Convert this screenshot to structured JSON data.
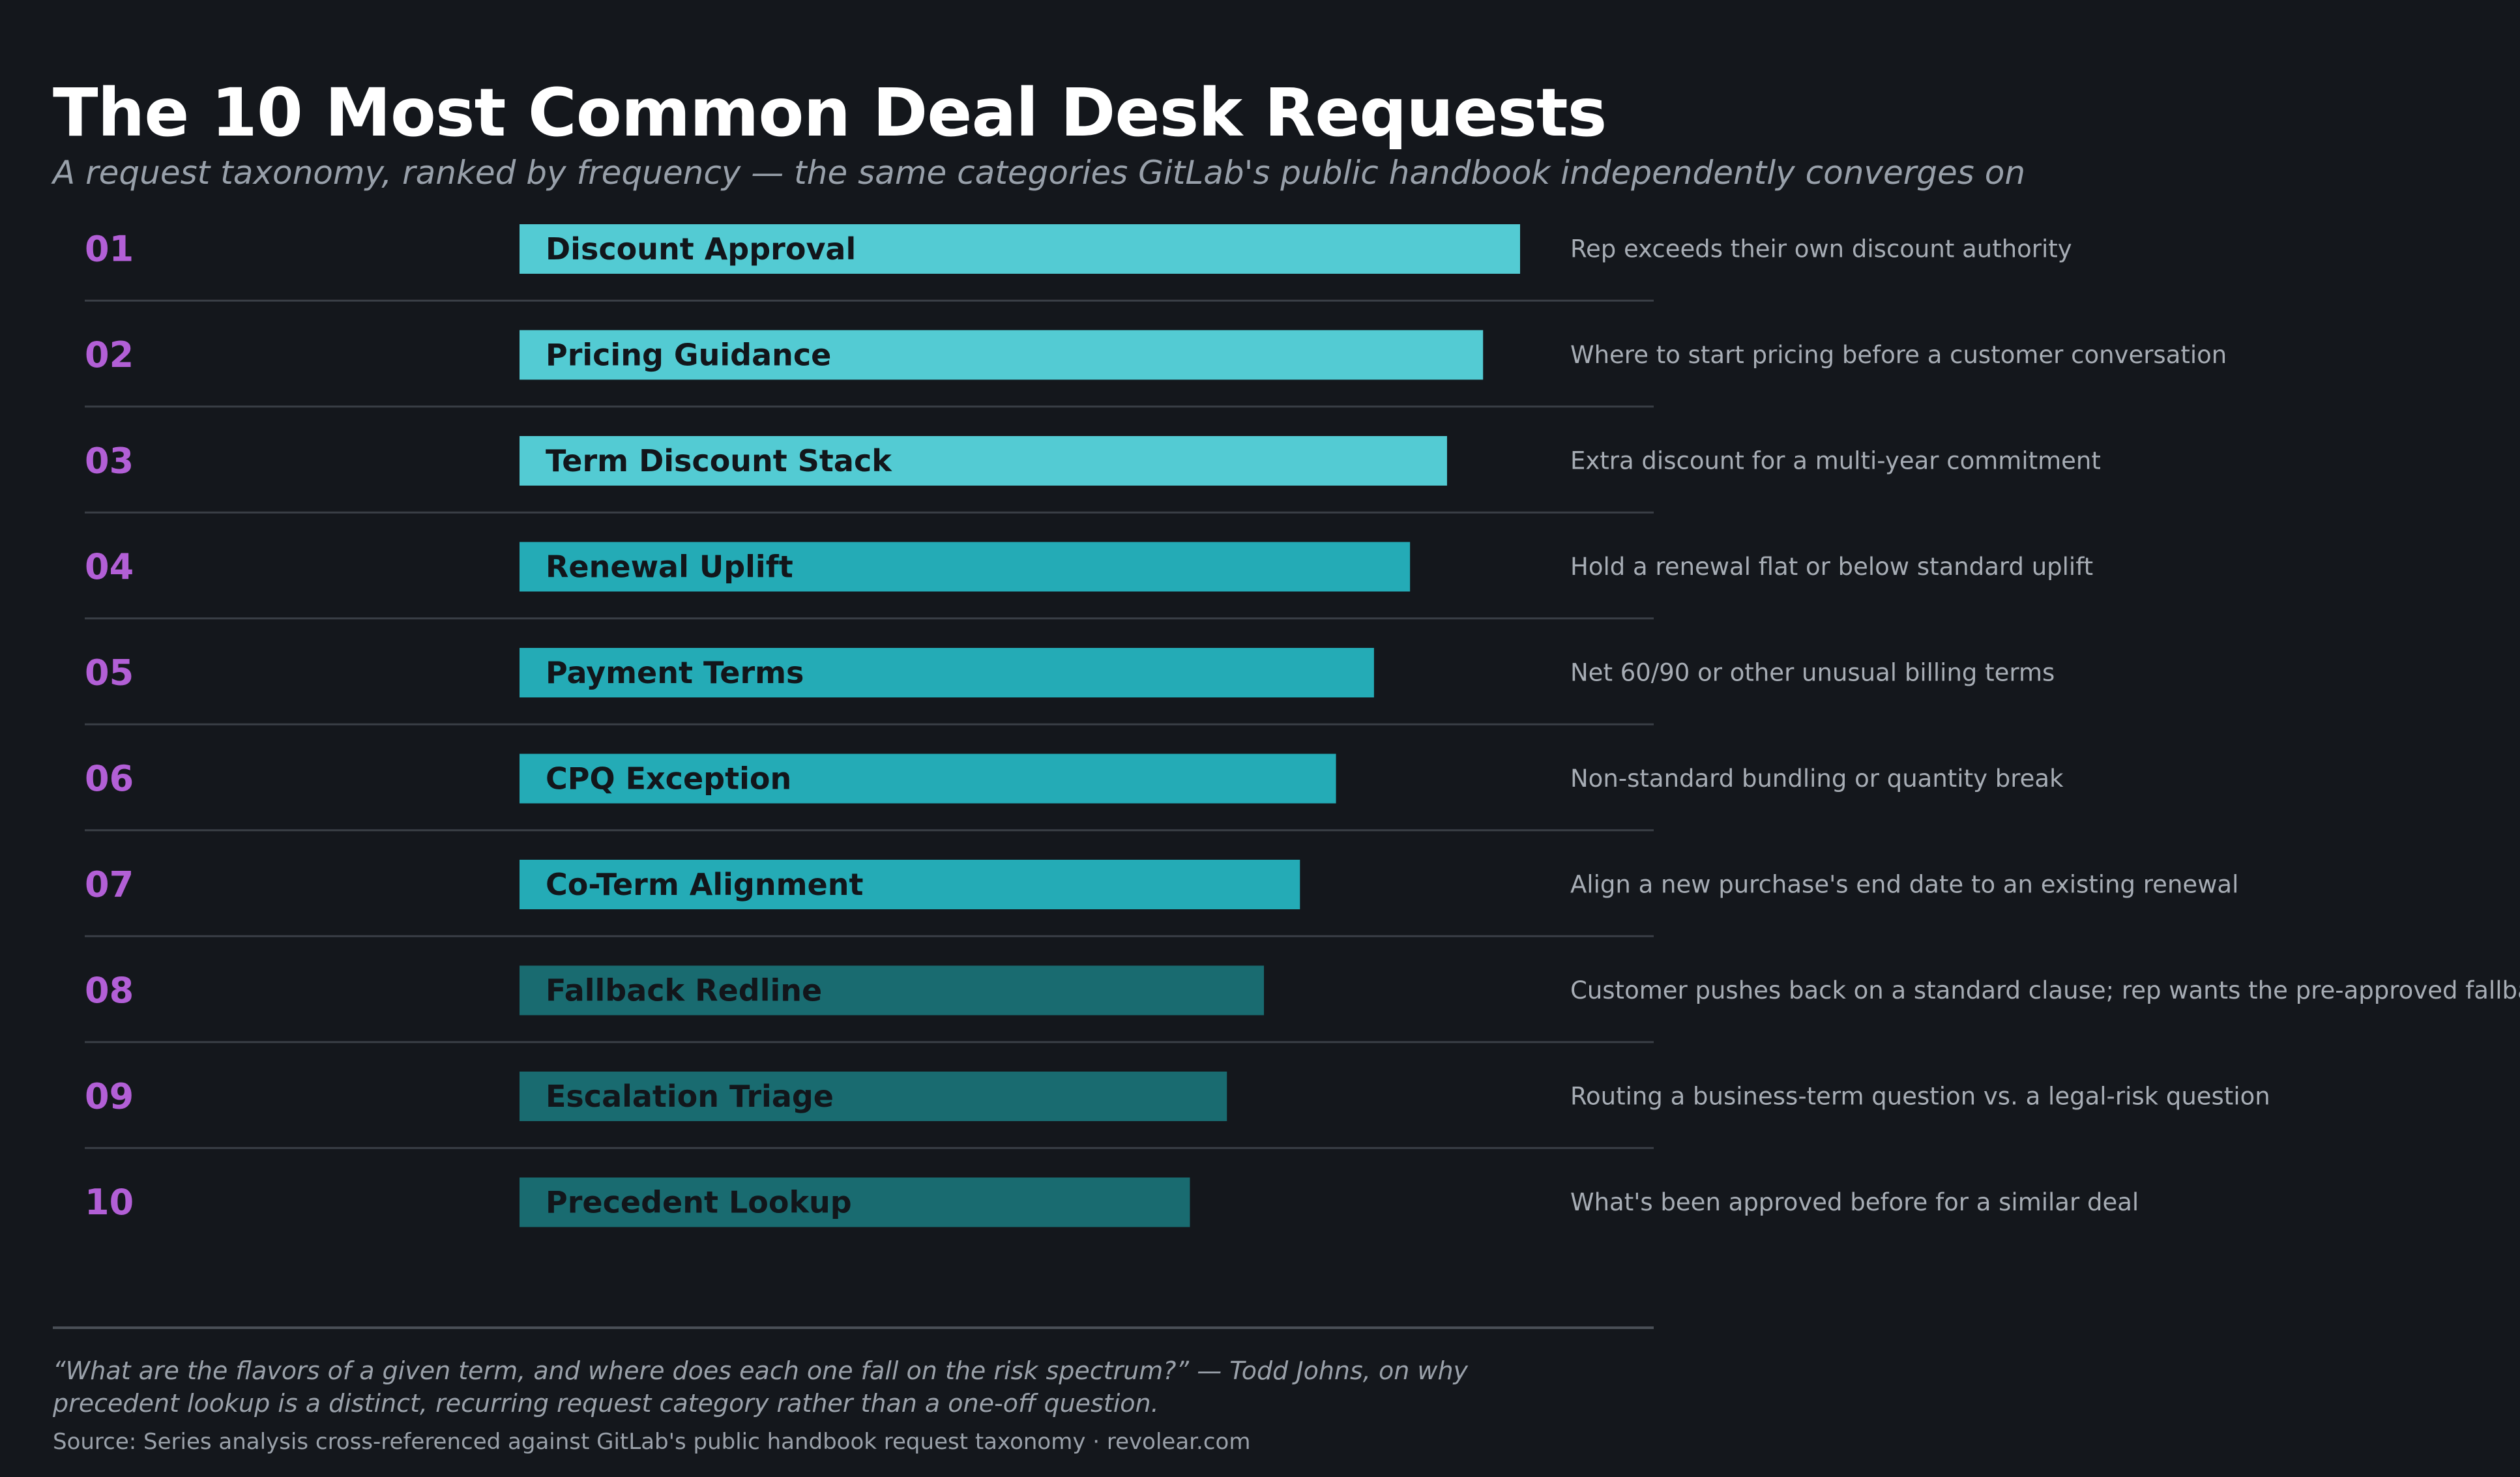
{
  "title": "The 10 Most Common Deal Desk Requests",
  "subtitle": "A request taxonomy, ranked by frequency — the same categories GitLab's public handbook independently converges on",
  "colors": {
    "background": "#14171c",
    "bar_light": "#53cbd3",
    "bar_mid": "#24abb6",
    "bar_dark": "#196b70",
    "rank": "#b25fd6",
    "divider": "#3a3f46"
  },
  "chart_data": {
    "type": "bar",
    "orientation": "horizontal",
    "ranks": [
      "01",
      "02",
      "03",
      "04",
      "05",
      "06",
      "07",
      "08",
      "09",
      "10"
    ],
    "categories": [
      "Discount Approval",
      "Pricing Guidance",
      "Term Discount Stack",
      "Renewal Uplift",
      "Payment Terms",
      "CPQ Exception",
      "Co-Term Alignment",
      "Fallback Redline",
      "Escalation Triage",
      "Precedent Lookup"
    ],
    "values": [
      100,
      96.3,
      92.7,
      89,
      85.4,
      81.6,
      78,
      74.4,
      70.7,
      67
    ],
    "tiers": [
      "light",
      "light",
      "light",
      "mid",
      "mid",
      "mid",
      "mid",
      "dark",
      "dark",
      "dark"
    ],
    "descriptions": [
      "Rep exceeds their own discount authority",
      "Where to start pricing before a customer conversation",
      "Extra discount for a multi-year commitment",
      "Hold a renewal flat or below standard uplift",
      "Net 60/90 or other unusual billing terms",
      "Non-standard bundling or quantity break",
      "Align a new purchase's end date to an existing renewal",
      "Customer pushes back on a standard clause; rep wants the pre-approved fallback",
      "Routing a business-term question vs. a legal-risk question",
      "What's been approved before for a similar deal"
    ],
    "xlim": [
      0,
      100
    ],
    "grid": false,
    "legend": "none"
  },
  "footer": {
    "quote": "“What are the flavors of a given term, and where does each one fall on the risk spectrum?” — Todd Johns, on why precedent lookup is a distinct, recurring request category rather than a one-off question.",
    "source": "Source: Series analysis cross-referenced against GitLab's public handbook request taxonomy · revolear.com"
  }
}
